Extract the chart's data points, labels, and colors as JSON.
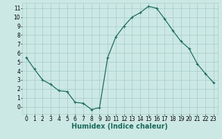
{
  "x": [
    0,
    1,
    2,
    3,
    4,
    5,
    6,
    7,
    8,
    9,
    10,
    11,
    12,
    13,
    14,
    15,
    16,
    17,
    18,
    19,
    20,
    21,
    22,
    23
  ],
  "y": [
    5.5,
    4.2,
    3.0,
    2.5,
    1.8,
    1.7,
    0.5,
    0.4,
    -0.3,
    -0.1,
    5.5,
    7.8,
    9.0,
    10.0,
    10.5,
    11.2,
    11.0,
    9.8,
    8.5,
    7.3,
    6.5,
    4.8,
    3.7,
    2.7
  ],
  "line_color": "#1a6b5a",
  "marker": "+",
  "marker_size": 3,
  "marker_lw": 0.8,
  "bg_color": "#cce8e4",
  "grid_color_major": "#aacfcb",
  "grid_color_minor": "#e08080",
  "xlabel": "Humidex (Indice chaleur)",
  "xlim": [
    -0.5,
    23.5
  ],
  "ylim": [
    -0.8,
    11.6
  ],
  "yticks": [
    0,
    1,
    2,
    3,
    4,
    5,
    6,
    7,
    8,
    9,
    10,
    11
  ],
  "xticks": [
    0,
    1,
    2,
    3,
    4,
    5,
    6,
    7,
    8,
    9,
    10,
    11,
    12,
    13,
    14,
    15,
    16,
    17,
    18,
    19,
    20,
    21,
    22,
    23
  ],
  "font_size": 5.5,
  "label_font_size": 7,
  "line_width": 0.9
}
